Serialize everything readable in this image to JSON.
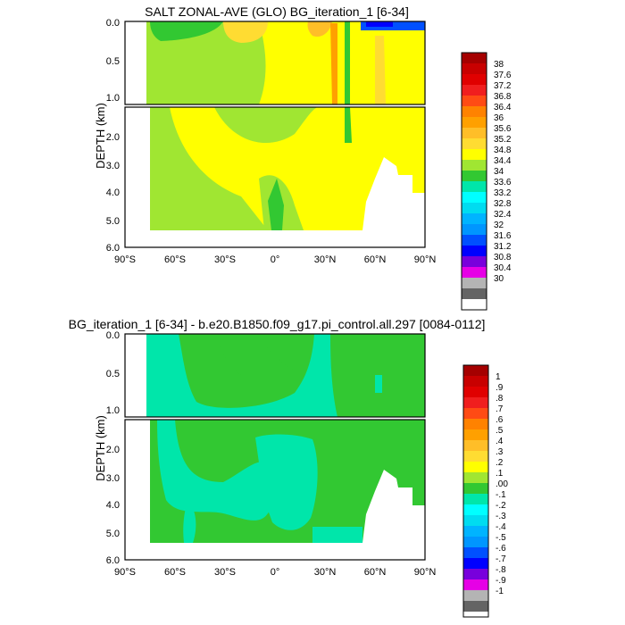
{
  "chart_data": [
    {
      "type": "heatmap",
      "title": "SALT ZONAL-AVE (GLO) BG_iteration_1 [6-34]",
      "ylabel": "DEPTH (km)",
      "xlabel": "",
      "x_ticks": [
        "90°S",
        "60°S",
        "30°S",
        "0°",
        "30°N",
        "60°N",
        "90°N"
      ],
      "y_ticks_upper": [
        "0.0",
        "0.5",
        "1.0"
      ],
      "y_ticks_lower": [
        "2.0",
        "3.0",
        "4.0",
        "5.0",
        "6.0"
      ],
      "colorbar_labels": [
        "38",
        "37.6",
        "37.2",
        "36.8",
        "36.4",
        "36",
        "35.6",
        "35.2",
        "34.8",
        "34.4",
        "34",
        "33.6",
        "33.2",
        "32.8",
        "32.4",
        "32",
        "31.6",
        "31.2",
        "30.8",
        "30.4",
        "30"
      ],
      "colors": [
        "#a50000",
        "#c80000",
        "#e00000",
        "#f01e1e",
        "#ff4b14",
        "#ff8200",
        "#ffa000",
        "#ffbe28",
        "#ffdc32",
        "#ffff00",
        "#a0e632",
        "#32c832",
        "#00e6aa",
        "#00ffff",
        "#00dcf0",
        "#00b4ff",
        "#0096ff",
        "#0050ff",
        "#0000ff",
        "#7800dc",
        "#e600e6",
        "#b4b4b4",
        "#646464",
        "#ffffff"
      ],
      "fill_levels_by_lat": [
        {
          "lat": -80,
          "upper": "34.4-34.8",
          "lower": "none"
        },
        {
          "lat": -60,
          "upper": "34.4-34.8",
          "lower": "34.8-35.2"
        },
        {
          "lat": -30,
          "upper": "34.8-35.2",
          "lower": "34.8-35.2"
        },
        {
          "lat": 0,
          "upper": "34.4-34.8",
          "lower": "34.4-34.8"
        },
        {
          "lat": 30,
          "upper": "35.2-36.8",
          "lower": "34.8-35.2"
        },
        {
          "lat": 60,
          "upper": "35.2-35.6",
          "lower": "34.8-35.2"
        },
        {
          "lat": 85,
          "upper": "31.6-34.4",
          "lower": "34.8-35.2"
        }
      ]
    },
    {
      "type": "heatmap",
      "title": "BG_iteration_1 [6-34] - b.e20.B1850.f09_g17.pi_control.all.297 [0084-0112]",
      "ylabel": "DEPTH (km)",
      "xlabel": "",
      "x_ticks": [
        "90°S",
        "60°S",
        "30°S",
        "0°",
        "30°N",
        "60°N",
        "90°N"
      ],
      "y_ticks_upper": [
        "0.0",
        "0.5",
        "1.0"
      ],
      "y_ticks_lower": [
        "2.0",
        "3.0",
        "4.0",
        "5.0",
        "6.0"
      ],
      "colorbar_labels": [
        "1",
        ".9",
        ".8",
        ".7",
        ".6",
        ".5",
        ".4",
        ".3",
        ".2",
        ".1",
        ".00",
        "-.1",
        "-.2",
        "-.3",
        "-.4",
        "-.5",
        "-.6",
        "-.7",
        "-.8",
        "-.9",
        "-1"
      ],
      "colors": [
        "#a50000",
        "#c80000",
        "#e00000",
        "#f01e1e",
        "#ff4b14",
        "#ff8200",
        "#ffa000",
        "#ffbe28",
        "#ffdc32",
        "#ffff00",
        "#a0e632",
        "#32c832",
        "#00e6aa",
        "#00ffff",
        "#00dcf0",
        "#00b4ff",
        "#0096ff",
        "#0050ff",
        "#0000ff",
        "#7800dc",
        "#e600e6",
        "#b4b4b4",
        "#646464",
        "#ffffff"
      ],
      "fill_levels_by_lat": [
        {
          "lat": -80,
          "upper": "-.1-.00",
          "lower": "-.1-.00"
        },
        {
          "lat": -60,
          "upper": ".00-.1",
          "lower": ".00-.1"
        },
        {
          "lat": -30,
          "upper": "-.1-.00",
          "lower": ".00-.1"
        },
        {
          "lat": 0,
          "upper": ".00-.1",
          "lower": "-.1-.00"
        },
        {
          "lat": 30,
          "upper": "-.1-.00",
          "lower": ".00-.1"
        },
        {
          "lat": 60,
          "upper": ".00-.1",
          "lower": ".00-.1"
        },
        {
          "lat": 85,
          "upper": ".00-.1",
          "lower": ".00-.1"
        }
      ]
    }
  ]
}
